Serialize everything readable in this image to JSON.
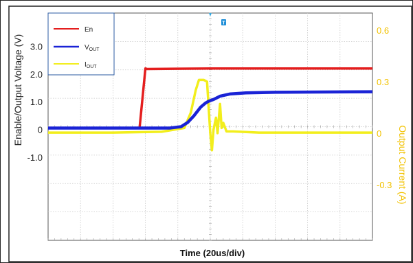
{
  "chart_data": {
    "type": "line",
    "xlabel": "Time  (20us/div)",
    "ylabel_left": "Enable/Output Voltage   (V)",
    "ylabel_right": "Output Current   (A)",
    "left_ticks": [
      {
        "label": "3.0",
        "value": 3.0
      },
      {
        "label": "2.0",
        "value": 2.0
      },
      {
        "label": "1.0",
        "value": 1.0
      },
      {
        "label": "0",
        "value": 0
      },
      {
        "label": "-1.0",
        "value": -1.0
      }
    ],
    "right_ticks": [
      {
        "label": "0.6",
        "value": 0.6
      },
      {
        "label": "0.3",
        "value": 0.3
      },
      {
        "label": "0",
        "value": 0
      },
      {
        "label": "-0.3",
        "value": -0.3
      }
    ],
    "ylim_left": [
      -4.0,
      4.2
    ],
    "ylim_right": [
      -0.625,
      0.7
    ],
    "xlim_us": [
      0,
      200
    ],
    "grid": true,
    "legend_position": "top-left",
    "series": [
      {
        "name": "En",
        "name_main": "En",
        "name_sub": "",
        "color": "#e41e1e",
        "axis": "left",
        "points": [
          [
            0,
            0.05
          ],
          [
            56.4,
            0.05
          ],
          [
            60,
            2.2
          ],
          [
            61,
            2.18
          ],
          [
            100,
            2.2
          ],
          [
            140,
            2.2
          ],
          [
            200,
            2.2
          ]
        ]
      },
      {
        "name": "VOUT",
        "name_main": "V",
        "name_sub": "OUT",
        "color": "#1a23d6",
        "axis": "left",
        "points": [
          [
            0,
            0.05
          ],
          [
            56.4,
            0.05
          ],
          [
            75,
            0.05
          ],
          [
            82,
            0.1
          ],
          [
            86,
            0.25
          ],
          [
            90,
            0.5
          ],
          [
            94,
            0.8
          ],
          [
            97,
            0.95
          ],
          [
            99,
            1.02
          ],
          [
            102,
            1.08
          ],
          [
            106,
            1.2
          ],
          [
            112,
            1.28
          ],
          [
            122,
            1.32
          ],
          [
            140,
            1.34
          ],
          [
            200,
            1.36
          ]
        ]
      },
      {
        "name": "IOUT",
        "name_main": "I",
        "name_sub": "OUT",
        "color": "#f2ee1c",
        "axis": "right",
        "points": [
          [
            0,
            0.003
          ],
          [
            40,
            0.003
          ],
          [
            70,
            0.008
          ],
          [
            84,
            0.03
          ],
          [
            88,
            0.12
          ],
          [
            91,
            0.25
          ],
          [
            93,
            0.31
          ],
          [
            96,
            0.31
          ],
          [
            98,
            0.3
          ],
          [
            99,
            0.15
          ],
          [
            100,
            0.0
          ],
          [
            101,
            -0.1
          ],
          [
            102,
            0.02
          ],
          [
            103.5,
            0.09
          ],
          [
            104.5,
            0.0
          ],
          [
            106,
            0.17
          ],
          [
            107,
            0.03
          ],
          [
            108,
            0.06
          ],
          [
            110,
            0.01
          ],
          [
            114,
            0.01
          ],
          [
            130,
            0.003
          ],
          [
            200,
            0.003
          ]
        ]
      }
    ]
  },
  "trigger_marker": "T",
  "colors": {
    "right_axis_text": "#f2c200",
    "grid": "#c8c8c8",
    "frame": "#222222"
  }
}
